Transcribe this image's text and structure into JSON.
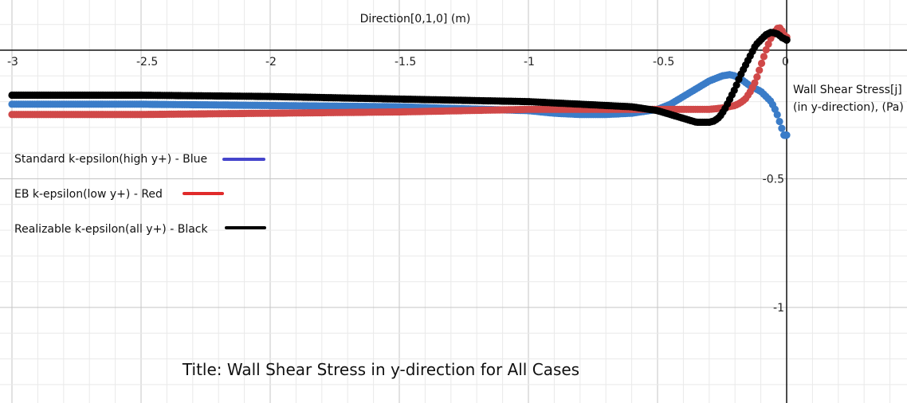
{
  "chart_data": {
    "type": "scatter",
    "title": "Title: Wall Shear Stress in y-direction for All Cases",
    "xlabel": "Direction[0,1,0] (m)",
    "ylabel_line1": "Wall Shear Stress[j]",
    "ylabel_line2": "(in y-direction), (Pa)",
    "xlim": [
      -3.03,
      0.47
    ],
    "ylim": [
      -1.37,
      0.19
    ],
    "grid": true,
    "x_ticks": [
      {
        "value": -3,
        "label": "-3"
      },
      {
        "value": -2.5,
        "label": "-2.5"
      },
      {
        "value": -2,
        "label": "-2"
      },
      {
        "value": -1.5,
        "label": "-1.5"
      },
      {
        "value": -1,
        "label": "-1"
      },
      {
        "value": -0.5,
        "label": "-0.5"
      },
      {
        "value": 0,
        "label": "0"
      }
    ],
    "y_ticks": [
      {
        "value": -0.5,
        "label": "-0.5"
      },
      {
        "value": -1,
        "label": "-1"
      }
    ],
    "series": [
      {
        "name": "Standard k-epsilon(high y+) - Blue",
        "color": "#3a7cc8",
        "legend_color": "#4545cc",
        "x": [
          -3.0,
          -2.5,
          -2.0,
          -1.5,
          -1.0,
          -0.9,
          -0.8,
          -0.7,
          -0.6,
          -0.5,
          -0.45,
          -0.4,
          -0.35,
          -0.3,
          -0.25,
          -0.22,
          -0.2,
          -0.18,
          -0.16,
          -0.14,
          -0.12,
          -0.1,
          -0.08,
          -0.06,
          -0.04,
          -0.03,
          -0.02,
          -0.01
        ],
        "y": [
          -0.21,
          -0.21,
          -0.215,
          -0.22,
          -0.235,
          -0.245,
          -0.25,
          -0.25,
          -0.245,
          -0.23,
          -0.21,
          -0.18,
          -0.15,
          -0.12,
          -0.1,
          -0.095,
          -0.1,
          -0.11,
          -0.125,
          -0.14,
          -0.15,
          -0.16,
          -0.18,
          -0.2,
          -0.24,
          -0.27,
          -0.3,
          -0.33
        ]
      },
      {
        "name": "EB k-epsilon(low y+) - Red",
        "color": "#d04848",
        "legend_color": "#e02a2a",
        "x": [
          -3.0,
          -2.5,
          -2.0,
          -1.5,
          -1.0,
          -0.8,
          -0.6,
          -0.5,
          -0.4,
          -0.3,
          -0.25,
          -0.2,
          -0.18,
          -0.16,
          -0.14,
          -0.12,
          -0.1,
          -0.08,
          -0.06,
          -0.04,
          -0.03,
          -0.02,
          -0.01,
          0.0
        ],
        "y": [
          -0.25,
          -0.25,
          -0.245,
          -0.24,
          -0.23,
          -0.23,
          -0.23,
          -0.23,
          -0.23,
          -0.23,
          -0.225,
          -0.215,
          -0.205,
          -0.19,
          -0.16,
          -0.12,
          -0.06,
          0.0,
          0.05,
          0.08,
          0.09,
          0.08,
          0.06,
          0.05
        ]
      },
      {
        "name": "Realizable k-epsilon(all y+) - Black",
        "color": "#000000",
        "legend_color": "#000000",
        "x": [
          -3.0,
          -2.5,
          -2.0,
          -1.5,
          -1.0,
          -0.8,
          -0.6,
          -0.5,
          -0.45,
          -0.4,
          -0.35,
          -0.3,
          -0.28,
          -0.26,
          -0.24,
          -0.22,
          -0.2,
          -0.18,
          -0.16,
          -0.14,
          -0.12,
          -0.1,
          -0.08,
          -0.06,
          -0.04,
          -0.03,
          -0.02,
          -0.01,
          0.0
        ],
        "y": [
          -0.175,
          -0.175,
          -0.18,
          -0.19,
          -0.2,
          -0.21,
          -0.22,
          -0.235,
          -0.25,
          -0.265,
          -0.28,
          -0.28,
          -0.275,
          -0.26,
          -0.23,
          -0.19,
          -0.15,
          -0.1,
          -0.06,
          -0.02,
          0.02,
          0.04,
          0.06,
          0.07,
          0.065,
          0.06,
          0.05,
          0.045,
          0.04
        ]
      }
    ]
  }
}
